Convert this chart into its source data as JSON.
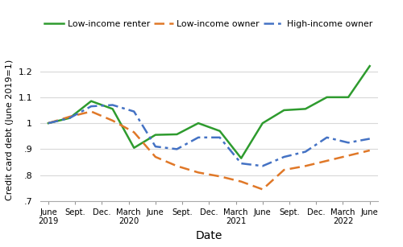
{
  "xlabel": "Date",
  "ylabel": "Credit card debt (June 2019=1)",
  "ylim": [
    0.7,
    1.25
  ],
  "yticks": [
    0.7,
    0.8,
    0.9,
    1.0,
    1.1,
    1.2
  ],
  "ytick_labels": [
    ".7",
    ".8",
    ".9",
    "1",
    "1.1",
    "1.2"
  ],
  "x_labels": [
    "June\n2019",
    "Sept.",
    "Dec.",
    "March\n2020",
    "June",
    "Sept.",
    "Dec.",
    "March\n2021",
    "June",
    "Sept.",
    "Dec.",
    "March\n2022",
    "June"
  ],
  "low_income_renter": [
    1.0,
    1.02,
    1.085,
    1.055,
    0.905,
    0.955,
    0.957,
    1.0,
    0.97,
    0.865,
    1.0,
    1.05,
    1.055,
    1.1,
    1.1,
    1.22
  ],
  "low_income_owner": [
    1.0,
    1.025,
    1.045,
    1.01,
    0.965,
    0.87,
    0.835,
    0.81,
    0.795,
    0.775,
    0.745,
    0.82,
    0.835,
    0.855,
    0.875,
    0.895
  ],
  "high_income_owner": [
    1.0,
    1.02,
    1.065,
    1.07,
    1.045,
    0.91,
    0.9,
    0.945,
    0.945,
    0.845,
    0.835,
    0.87,
    0.89,
    0.945,
    0.925,
    0.94
  ],
  "renter_color": "#2e9b2e",
  "owner_low_color": "#e07828",
  "owner_high_color": "#4472c4",
  "background_color": "#ffffff",
  "grid_color": "#d8d8d8",
  "legend_labels": [
    "Low-income renter",
    "Low-income owner",
    "High-income owner"
  ],
  "figsize": [
    5.0,
    3.07
  ],
  "dpi": 100
}
